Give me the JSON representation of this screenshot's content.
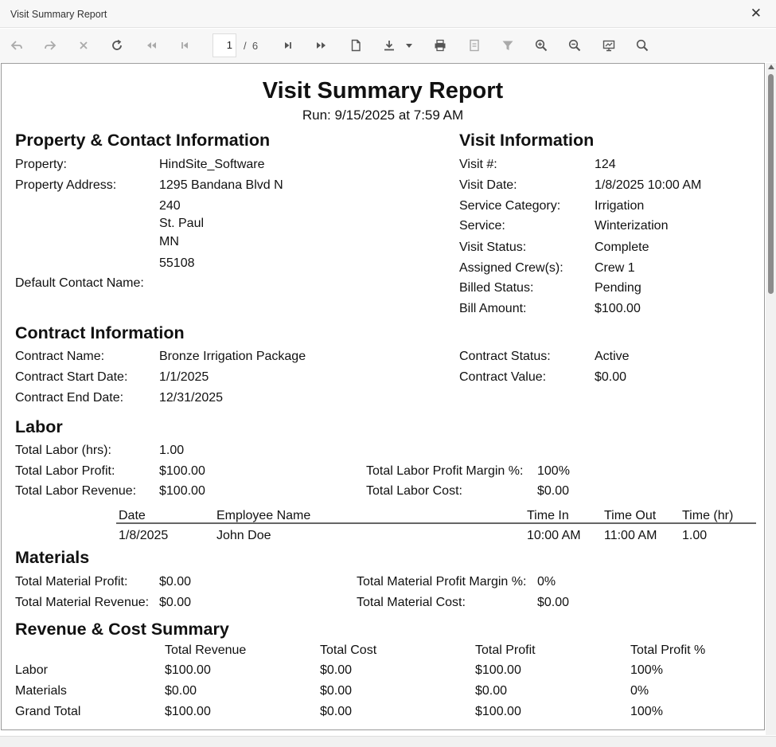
{
  "window": {
    "title": "Visit Summary Report"
  },
  "toolbar": {
    "page_current": "1",
    "page_separator": "/",
    "page_total": "6"
  },
  "report": {
    "title": "Visit Summary Report",
    "run": "Run: 9/15/2025 at 7:59 AM",
    "property_section": {
      "heading": "Property & Contact Information",
      "property_label": "Property:",
      "property_value": "HindSite_Software",
      "address_label": "Property Address:",
      "address_lines": [
        "1295 Bandana Blvd N",
        "240",
        "St. Paul",
        "MN",
        "55108"
      ],
      "contact_label": "Default Contact Name:",
      "contact_value": ""
    },
    "visit_section": {
      "heading": "Visit Information",
      "rows": [
        {
          "label": "Visit #:",
          "value": "124"
        },
        {
          "label": "Visit Date:",
          "value": "1/8/2025 10:00 AM"
        },
        {
          "label": "Service Category:",
          "value": "Irrigation"
        },
        {
          "label": "Service:",
          "value": "Winterization"
        },
        {
          "label": "Visit Status:",
          "value": "Complete"
        },
        {
          "label": "Assigned Crew(s):",
          "value": "Crew 1"
        },
        {
          "label": "Billed Status:",
          "value": "Pending"
        },
        {
          "label": "Bill Amount:",
          "value": "$100.00"
        }
      ]
    },
    "contract_section": {
      "heading": "Contract Information",
      "name_label": "Contract Name:",
      "name_value": "Bronze Irrigation Package",
      "start_label": "Contract Start Date:",
      "start_value": "1/1/2025",
      "end_label": "Contract End Date:",
      "end_value": "12/31/2025",
      "status_label": "Contract Status:",
      "status_value": "Active",
      "value_label": "Contract Value:",
      "value_value": "$0.00"
    },
    "labor_section": {
      "heading": "Labor",
      "hours_label": "Total Labor (hrs):",
      "hours_value": "1.00",
      "profit_label": "Total Labor Profit:",
      "profit_value": "$100.00",
      "revenue_label": "Total Labor Revenue:",
      "revenue_value": "$100.00",
      "margin_label": "Total Labor Profit Margin %:",
      "margin_value": "100%",
      "cost_label": "Total Labor Cost:",
      "cost_value": "$0.00",
      "table": {
        "headers": [
          "Date",
          "Employee Name",
          "Time In",
          "Time Out",
          "Time (hr)"
        ],
        "rows": [
          [
            "1/8/2025",
            "John Doe",
            "10:00 AM",
            "11:00 AM",
            "1.00"
          ]
        ]
      }
    },
    "materials_section": {
      "heading": "Materials",
      "profit_label": "Total Material Profit:",
      "profit_value": "$0.00",
      "revenue_label": "Total Material Revenue:",
      "revenue_value": "$0.00",
      "margin_label": "Total Material Profit Margin %:",
      "margin_value": "0%",
      "cost_label": "Total Material Cost:",
      "cost_value": "$0.00"
    },
    "summary_section": {
      "heading": "Revenue & Cost Summary",
      "headers": [
        "Total Revenue",
        "Total Cost",
        "Total Profit",
        "Total Profit %"
      ],
      "rows": [
        [
          "Labor",
          "$100.00",
          "$0.00",
          "$100.00",
          "100%"
        ],
        [
          "Materials",
          "$0.00",
          "$0.00",
          "$0.00",
          "0%"
        ],
        [
          "Grand Total",
          "$100.00",
          "$0.00",
          "$100.00",
          "100%"
        ]
      ]
    }
  }
}
